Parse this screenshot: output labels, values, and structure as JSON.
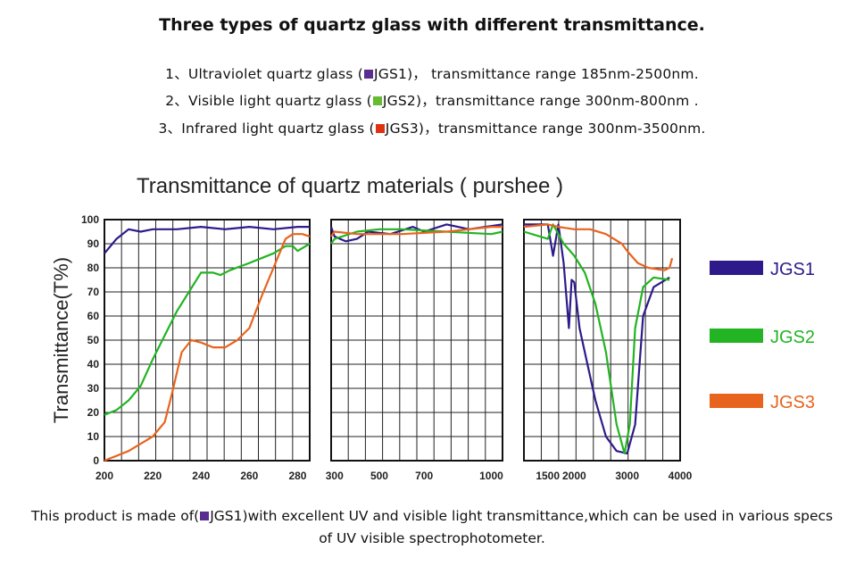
{
  "heading": "Three types of quartz glass with different transmittance.",
  "specs": [
    {
      "pre": "1、Ultraviolet quartz glass (",
      "code": "JGS1",
      "post": ")，  transmittance range 185nm-2500nm.",
      "color": "#5a2d91"
    },
    {
      "pre": "2、Visible light quartz glass (",
      "code": "JGS2",
      "post": ")，transmittance range 300nm-800nm .",
      "color": "#66bb33"
    },
    {
      "pre": "3、Infrared light quartz glass (",
      "code": "JGS3",
      "post": ")，transmittance range 300nm-3500nm.",
      "color": "#dd3311"
    }
  ],
  "footer": {
    "pre": "This product is made of(",
    "code": "JGS1",
    "post": ")with excellent UV and visible light transmittance,which can be used in various specs of UV visible spectrophotometer.",
    "color": "#5a2d91"
  },
  "chart_data": {
    "type": "line",
    "title": "Transmittance of quartz materials ( purshee )",
    "ylabel": "Transmittance(T%)",
    "xlabel": "",
    "ylim": [
      0,
      100
    ],
    "yticks": [
      0,
      10,
      20,
      30,
      40,
      50,
      60,
      70,
      80,
      90,
      100
    ],
    "grid": true,
    "legend_position": "right",
    "panels": [
      {
        "xlim": [
          200,
          285
        ],
        "xticks": [
          200,
          220,
          240,
          260,
          280
        ]
      },
      {
        "xlim": [
          285,
          1050
        ],
        "xticks": [
          300,
          500,
          700,
          1000
        ]
      },
      {
        "xlim": [
          1050,
          4000
        ],
        "xticks": [
          1500,
          2000,
          3000,
          4000
        ]
      }
    ],
    "series": [
      {
        "name": "JGS1",
        "color": "#2e1a8a",
        "points": [
          [
            200,
            86
          ],
          [
            205,
            92
          ],
          [
            210,
            96
          ],
          [
            215,
            95
          ],
          [
            220,
            96
          ],
          [
            230,
            96
          ],
          [
            240,
            97
          ],
          [
            250,
            96
          ],
          [
            260,
            97
          ],
          [
            270,
            96
          ],
          [
            280,
            97
          ],
          [
            285,
            97
          ],
          [
            300,
            93
          ],
          [
            350,
            91
          ],
          [
            400,
            92
          ],
          [
            450,
            95
          ],
          [
            550,
            94
          ],
          [
            650,
            97
          ],
          [
            700,
            95
          ],
          [
            800,
            98
          ],
          [
            900,
            96
          ],
          [
            1050,
            98
          ],
          [
            1500,
            98
          ],
          [
            1600,
            85
          ],
          [
            1700,
            98
          ],
          [
            1800,
            82
          ],
          [
            1900,
            55
          ],
          [
            1950,
            75
          ],
          [
            2000,
            74
          ],
          [
            2100,
            55
          ],
          [
            2200,
            45
          ],
          [
            2400,
            25
          ],
          [
            2600,
            10
          ],
          [
            2800,
            4
          ],
          [
            3000,
            3
          ],
          [
            3150,
            15
          ],
          [
            3300,
            60
          ],
          [
            3500,
            72
          ],
          [
            3800,
            76
          ]
        ]
      },
      {
        "name": "JGS2",
        "color": "#22b422",
        "points": [
          [
            200,
            19
          ],
          [
            205,
            21
          ],
          [
            210,
            25
          ],
          [
            215,
            31
          ],
          [
            220,
            42
          ],
          [
            225,
            52
          ],
          [
            230,
            62
          ],
          [
            235,
            70
          ],
          [
            240,
            78
          ],
          [
            245,
            78
          ],
          [
            248,
            77
          ],
          [
            252,
            79
          ],
          [
            260,
            82
          ],
          [
            265,
            84
          ],
          [
            270,
            86
          ],
          [
            275,
            89
          ],
          [
            278,
            89
          ],
          [
            280,
            87
          ],
          [
            285,
            90
          ],
          [
            300,
            92
          ],
          [
            400,
            95
          ],
          [
            500,
            96
          ],
          [
            600,
            96
          ],
          [
            800,
            95
          ],
          [
            1000,
            94
          ],
          [
            1050,
            95
          ],
          [
            1500,
            92
          ],
          [
            1600,
            98
          ],
          [
            1700,
            94
          ],
          [
            1800,
            90
          ],
          [
            2000,
            85
          ],
          [
            2200,
            78
          ],
          [
            2400,
            65
          ],
          [
            2600,
            45
          ],
          [
            2800,
            15
          ],
          [
            2950,
            3
          ],
          [
            3050,
            15
          ],
          [
            3150,
            55
          ],
          [
            3300,
            72
          ],
          [
            3500,
            76
          ],
          [
            3800,
            75
          ]
        ]
      },
      {
        "name": "JGS3",
        "color": "#e8641e",
        "points": [
          [
            200,
            0
          ],
          [
            210,
            4
          ],
          [
            215,
            7
          ],
          [
            220,
            10
          ],
          [
            225,
            16
          ],
          [
            228,
            28
          ],
          [
            232,
            45
          ],
          [
            236,
            50
          ],
          [
            240,
            49
          ],
          [
            245,
            47
          ],
          [
            250,
            47
          ],
          [
            255,
            50
          ],
          [
            260,
            55
          ],
          [
            265,
            68
          ],
          [
            270,
            80
          ],
          [
            275,
            92
          ],
          [
            278,
            94
          ],
          [
            282,
            94
          ],
          [
            285,
            93
          ],
          [
            300,
            95
          ],
          [
            400,
            94
          ],
          [
            500,
            94
          ],
          [
            600,
            94
          ],
          [
            800,
            95
          ],
          [
            1000,
            97
          ],
          [
            1050,
            97
          ],
          [
            1500,
            98
          ],
          [
            1700,
            97
          ],
          [
            2000,
            96
          ],
          [
            2300,
            96
          ],
          [
            2600,
            94
          ],
          [
            2900,
            90
          ],
          [
            3000,
            87
          ],
          [
            3200,
            82
          ],
          [
            3400,
            80
          ],
          [
            3700,
            79
          ],
          [
            3800,
            80
          ],
          [
            3850,
            84
          ]
        ]
      }
    ]
  }
}
